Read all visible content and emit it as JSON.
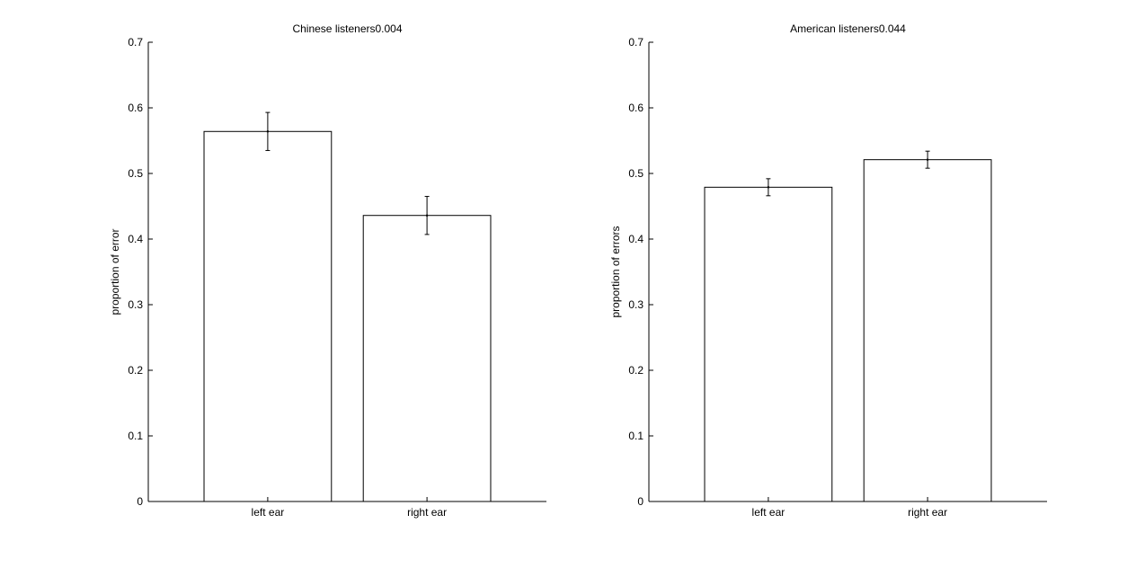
{
  "chart_data": [
    {
      "type": "bar",
      "title": "Chinese listeners0.004",
      "xlabel": "",
      "ylabel": "proportion of error",
      "categories": [
        "left ear",
        "right ear"
      ],
      "values": [
        0.564,
        0.436
      ],
      "errors": [
        0.029,
        0.029
      ],
      "ylim": [
        0,
        0.7
      ],
      "yticks": [
        "0",
        "0.1",
        "0.2",
        "0.3",
        "0.4",
        "0.5",
        "0.6",
        "0.7"
      ],
      "grid": false,
      "bar_fill": "#ffffff",
      "bar_stroke": "#000000"
    },
    {
      "type": "bar",
      "title": "American listeners0.044",
      "xlabel": "",
      "ylabel": "proportion of errors",
      "categories": [
        "left ear",
        "right ear"
      ],
      "values": [
        0.479,
        0.521
      ],
      "errors": [
        0.013,
        0.013
      ],
      "ylim": [
        0,
        0.7
      ],
      "yticks": [
        "0",
        "0.1",
        "0.2",
        "0.3",
        "0.4",
        "0.5",
        "0.6",
        "0.7"
      ],
      "grid": false,
      "bar_fill": "#ffffff",
      "bar_stroke": "#000000"
    }
  ]
}
